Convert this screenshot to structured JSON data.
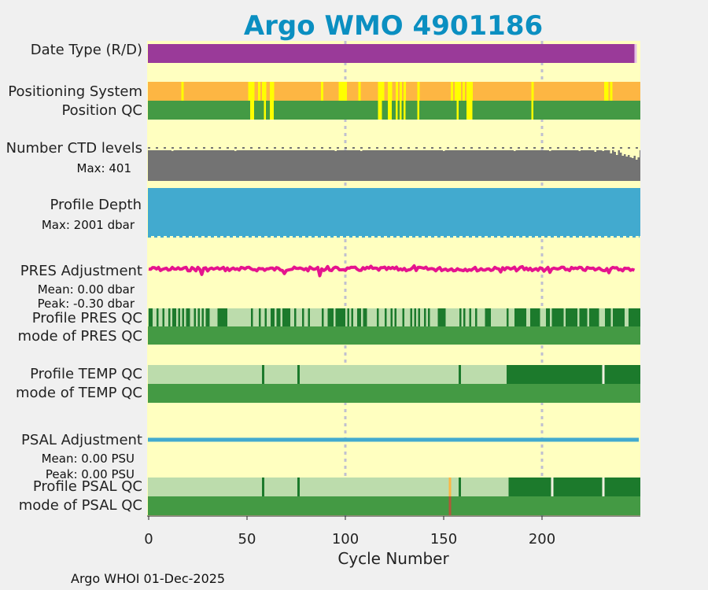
{
  "chart_data": {
    "type": "timeline",
    "title": "Argo WMO 4901186",
    "xlabel": "Cycle Number",
    "xlim": [
      0,
      249
    ],
    "xticks": [
      0,
      50,
      100,
      150,
      200
    ],
    "grid_x": [
      100,
      200
    ],
    "footer": "Argo WHOI 01-Dec-2025",
    "colors": {
      "background": "#ffffc0",
      "title": "#0b8fc1",
      "magenta": "#9a3a99",
      "orange": "#fdb643",
      "yellow": "#ffff00",
      "green": "#449a44",
      "light_green": "#bcdcac",
      "dark_green": "#1c7a2c",
      "gray": "#737373",
      "blue": "#42aacf",
      "pink": "#e5148e",
      "pink_text": "#e20f86",
      "blue_text": "#0b8fc1",
      "grid": "#c0c0d0"
    },
    "rows": {
      "date_type": {
        "label": "Date Type (R/D)",
        "value": "R",
        "end_cycle": 247
      },
      "positioning_system": {
        "label": "Positioning System",
        "gps_cycles": [
          17,
          51,
          52,
          53,
          56,
          58,
          59,
          62,
          63,
          88,
          97,
          98,
          99,
          100,
          107,
          117,
          118,
          119,
          122,
          123,
          126,
          128,
          130,
          137,
          154,
          156,
          157,
          158,
          160,
          162,
          163,
          164,
          195,
          232,
          233,
          235
        ]
      },
      "position_qc": {
        "label": "Position QC",
        "flag_cycles": [
          52,
          53,
          59,
          62,
          63,
          117,
          118,
          122,
          123,
          126,
          128,
          130,
          137,
          157,
          162,
          163,
          164,
          195
        ]
      },
      "ctd_levels": {
        "label": "Number CTD levels",
        "max_label": "Max: 401",
        "max": 401
      },
      "profile_depth": {
        "label": "Profile Depth",
        "max_label": "Max: 2001 dbar",
        "max": 2001
      },
      "pres_adjustment": {
        "label": "PRES Adjustment",
        "mean_label": "Mean: 0.00 dbar",
        "peak_label": "Peak: -0.30 dbar",
        "mean": 0.0,
        "peak": -0.3
      },
      "profile_pres_qc": {
        "label": "Profile PRES QC",
        "mode_label": "mode of PRES QC"
      },
      "profile_temp_qc": {
        "label": "Profile TEMP QC",
        "mode_label": "mode of TEMP QC",
        "grade_b_from": 0,
        "grade_a_from": 182,
        "markers": [
          58,
          76,
          158,
          231
        ]
      },
      "psal_adjustment": {
        "label": "PSAL Adjustment",
        "mean_label": "Mean: 0.00 PSU",
        "peak_label": "Peak: 0.00 PSU",
        "mean": 0.0,
        "peak": 0.0
      },
      "profile_psal_qc": {
        "label": "Profile PSAL QC",
        "mode_label": "mode of PSAL QC",
        "grade_a_from": 183,
        "markers": [
          58,
          76,
          153,
          158,
          205,
          231
        ],
        "mode_flag_cycle": 153
      }
    }
  }
}
